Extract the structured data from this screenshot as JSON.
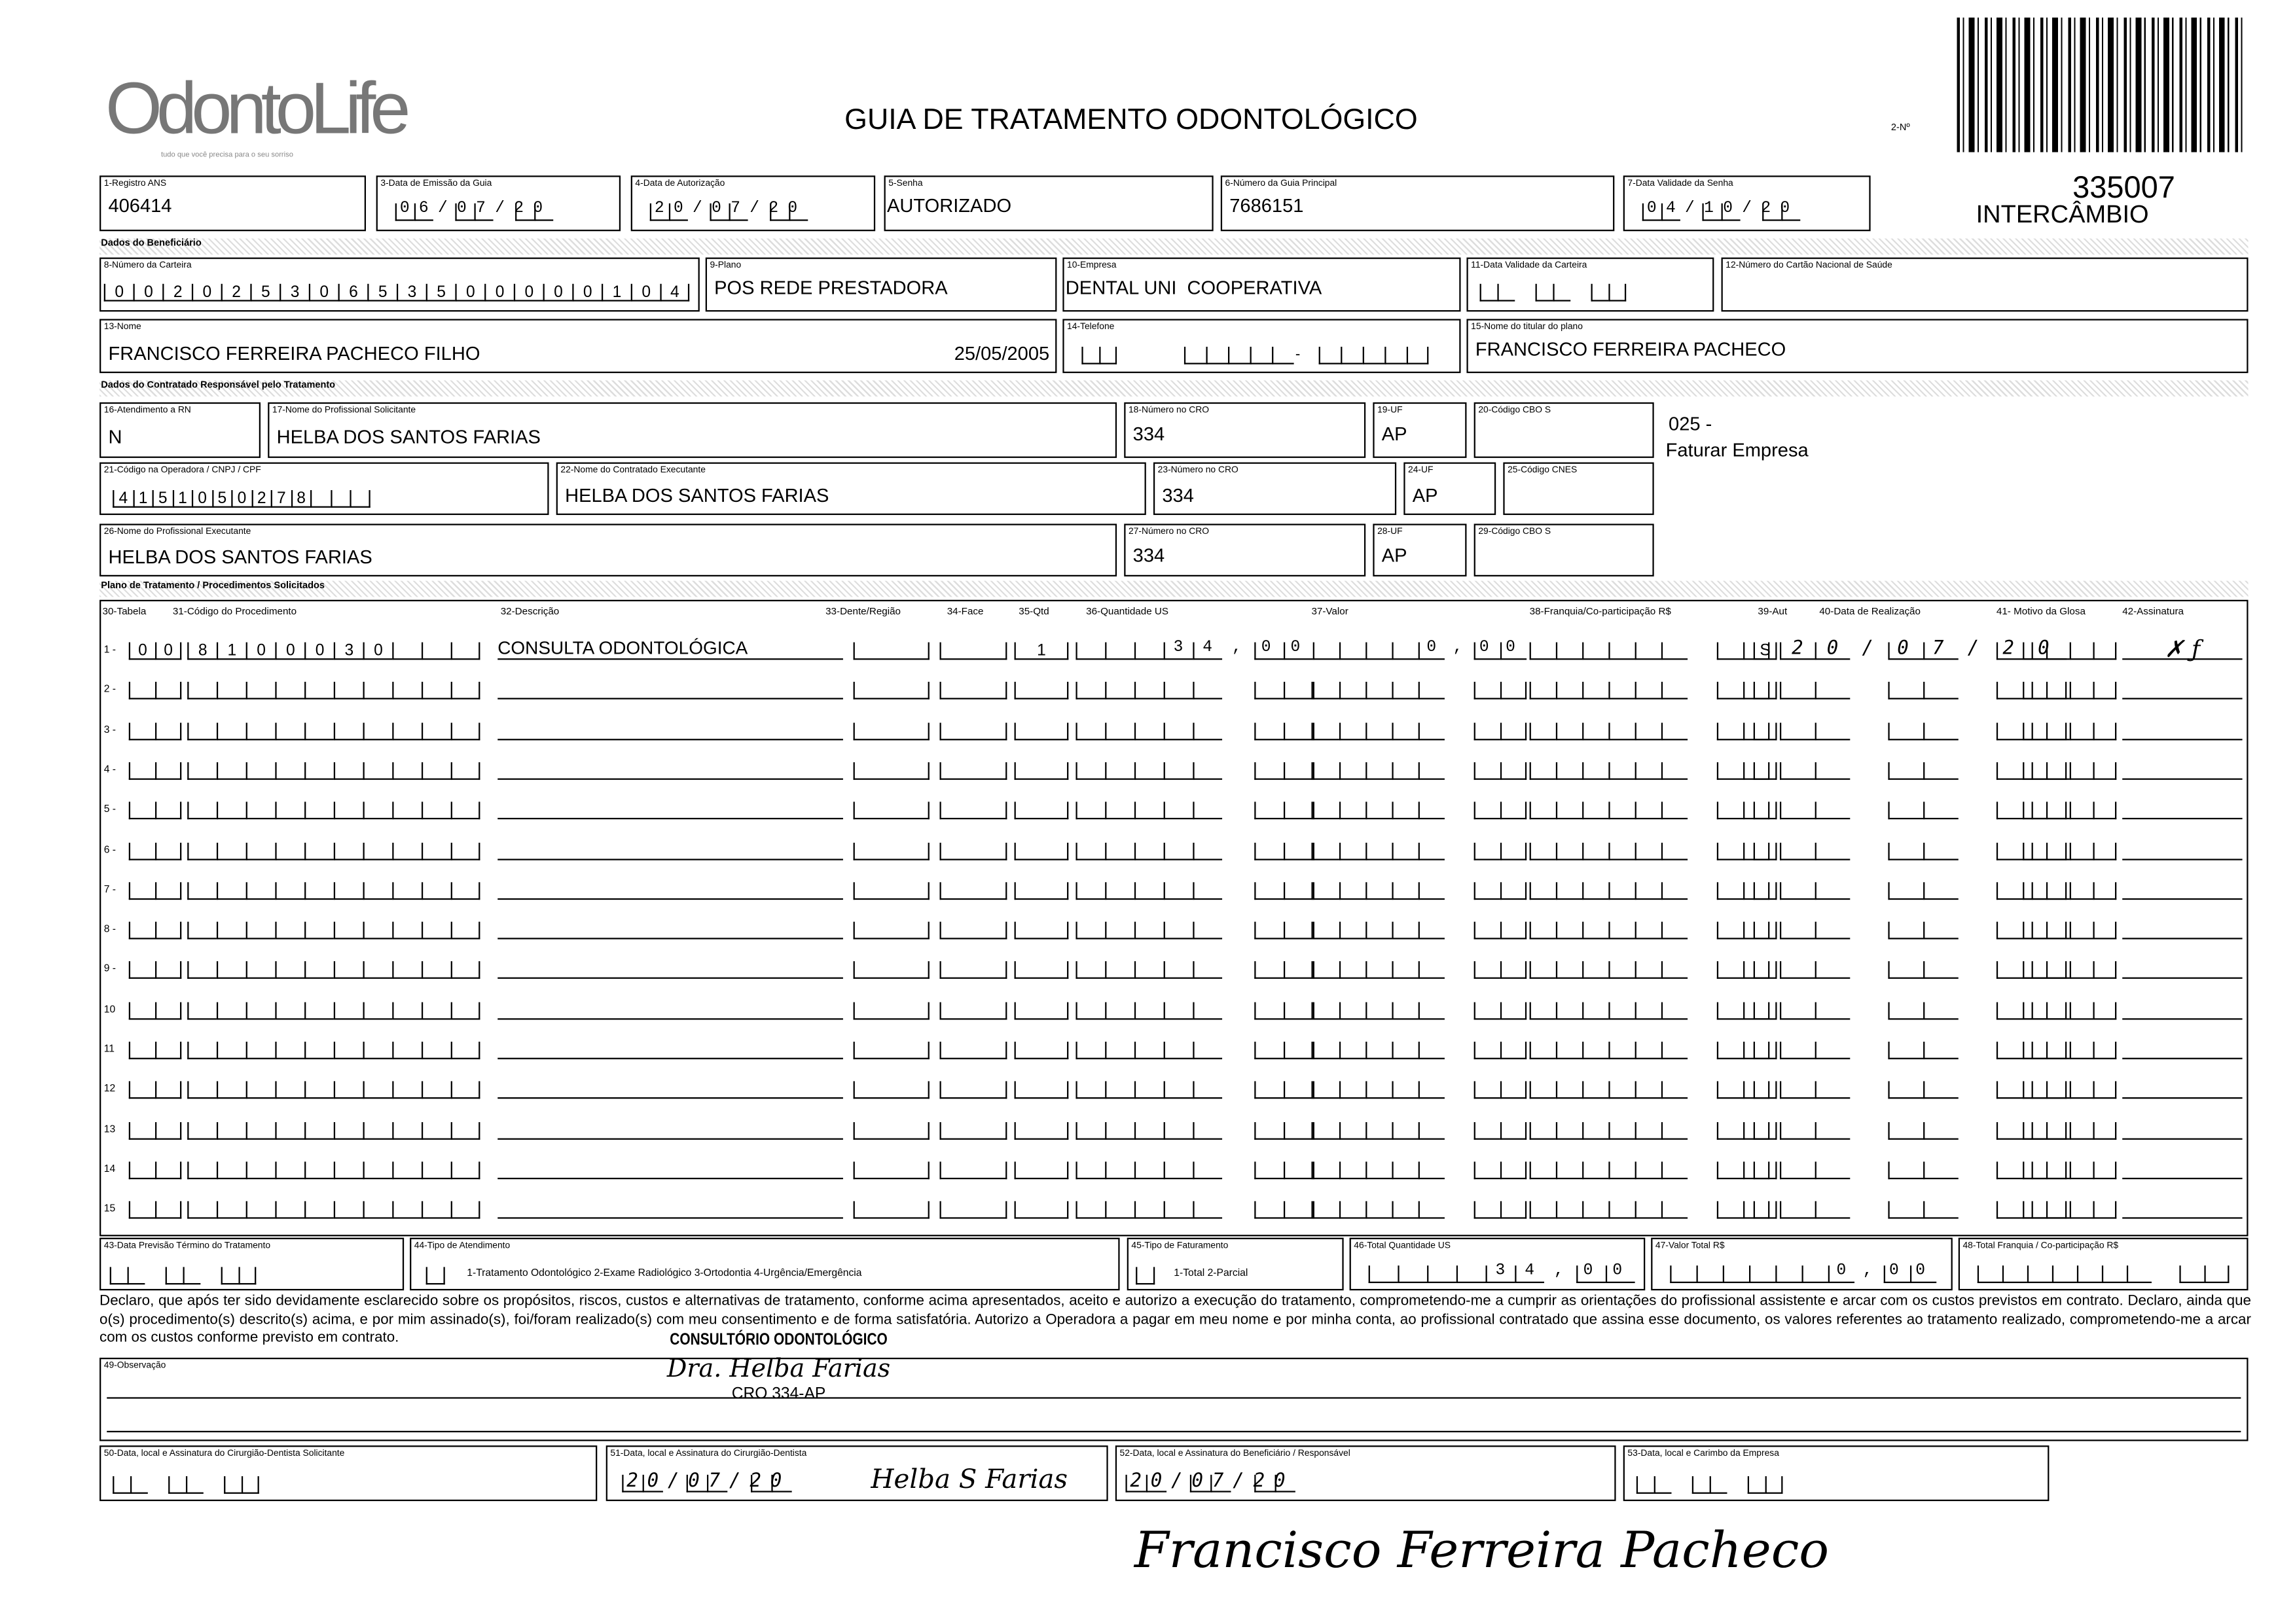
{
  "header": {
    "logo_text": "OdontoLife",
    "logo_tagline": "tudo que você precisa para o seu sorriso",
    "title": "GUIA DE TRATAMENTO ODONTOLÓGICO",
    "numero_label": "2-Nº",
    "guide_number": "335007",
    "intercambio": "INTERCÂMBIO"
  },
  "row1": {
    "registro_ans": {
      "label": "1-Registro ANS",
      "value": "406414"
    },
    "data_emissao": {
      "label": "3-Data de Emissão da Guia",
      "value": "06/07/20"
    },
    "data_autorizacao": {
      "label": "4-Data de Autorização",
      "value": "20/07/20"
    },
    "senha": {
      "label": "5-Senha",
      "value": "AUTORIZADO"
    },
    "guia_principal": {
      "label": "6-Número da Guia Principal",
      "value": "7686151"
    },
    "validade_senha": {
      "label": "7-Data Validade da Senha",
      "value": "04/10/20"
    }
  },
  "beneficiario": {
    "section": "Dados do Beneficiário",
    "carteira": {
      "label": "8-Número da Carteira",
      "value": "00202530653500000104"
    },
    "plano": {
      "label": "9-Plano",
      "value": "POS REDE PRESTADORA"
    },
    "empresa": {
      "label": "10-Empresa",
      "value": "DENTAL UNI  COOPERATIVA"
    },
    "validade_carteira": {
      "label": "11-Data Validade da Carteira",
      "value": ""
    },
    "cartao_nacional": {
      "label": "12-Número do Cartão Nacional de Saúde",
      "value": ""
    },
    "nome": {
      "label": "13-Nome",
      "value": "FRANCISCO FERREIRA PACHECO FILHO",
      "birth_date": "25/05/2005"
    },
    "telefone": {
      "label": "14-Telefone",
      "value": ""
    },
    "titular": {
      "label": "15-Nome do titular do plano",
      "value": "FRANCISCO FERREIRA PACHECO"
    }
  },
  "contratado": {
    "section": "Dados do Contratado Responsável pelo Tratamento",
    "rn": {
      "label": "16-Atendimento a RN",
      "value": "N"
    },
    "prof_solicitante": {
      "label": "17-Nome do Profissional Solicitante",
      "value": "HELBA DOS SANTOS FARIAS"
    },
    "cro18": {
      "label": "18-Número no CRO",
      "value": "334"
    },
    "uf19": {
      "label": "19-UF",
      "value": "AP"
    },
    "cbo20": {
      "label": "20-Código CBO S",
      "value": ""
    },
    "note_code": "025 -",
    "note_text": "Faturar Empresa",
    "codigo_operadora": {
      "label": "21-Código na Operadora / CNPJ / CPF",
      "value": "4151050278"
    },
    "contratado_exec": {
      "label": "22-Nome do Contratado Executante",
      "value": "HELBA DOS SANTOS FARIAS"
    },
    "cro23": {
      "label": "23-Número no CRO",
      "value": "334"
    },
    "uf24": {
      "label": "24-UF",
      "value": "AP"
    },
    "cnes": {
      "label": "25-Código CNES",
      "value": ""
    },
    "prof_exec": {
      "label": "26-Nome do Profissional Executante",
      "value": "HELBA DOS SANTOS FARIAS"
    },
    "cro27": {
      "label": "27-Número no CRO",
      "value": "334"
    },
    "uf28": {
      "label": "28-UF",
      "value": "AP"
    },
    "cbo29": {
      "label": "29-Código CBO S",
      "value": ""
    }
  },
  "plano": {
    "section": "Plano de Tratamento / Procedimentos Solicitados",
    "headers": [
      "30-Tabela",
      "31-Código do Procedimento",
      "32-Descrição",
      "33-Dente/Região",
      "34-Face",
      "35-Qtd",
      "36-Quantidade US",
      "37-Valor",
      "38-Franquia/Co-participação R$",
      "39-Aut",
      "40-Data de Realização",
      "41- Motivo da Glosa",
      "42-Assinatura"
    ],
    "rows": [
      {
        "n": "1 -",
        "tabela": "00",
        "codigo": "8100030",
        "descricao": "CONSULTA ODONTOLÓGICA",
        "dente": "",
        "face": "",
        "qtd": "1",
        "qtd_us": "34,00",
        "valor": "0,00",
        "franquia": "",
        "aut": "S",
        "data": "20/07/20",
        "motivo": "",
        "assinatura": "✗ ƒ"
      },
      {
        "n": "2 -",
        "tabela": "",
        "codigo": "",
        "descricao": "",
        "dente": "",
        "face": "",
        "qtd": "",
        "qtd_us": "",
        "valor": "",
        "franquia": "",
        "aut": "",
        "data": "",
        "motivo": "",
        "assinatura": ""
      },
      {
        "n": "3 -",
        "tabela": "",
        "codigo": "",
        "descricao": "",
        "dente": "",
        "face": "",
        "qtd": "",
        "qtd_us": "",
        "valor": "",
        "franquia": "",
        "aut": "",
        "data": "",
        "motivo": "",
        "assinatura": ""
      },
      {
        "n": "4 -",
        "tabela": "",
        "codigo": "",
        "descricao": "",
        "dente": "",
        "face": "",
        "qtd": "",
        "qtd_us": "",
        "valor": "",
        "franquia": "",
        "aut": "",
        "data": "",
        "motivo": "",
        "assinatura": ""
      },
      {
        "n": "5 -",
        "tabela": "",
        "codigo": "",
        "descricao": "",
        "dente": "",
        "face": "",
        "qtd": "",
        "qtd_us": "",
        "valor": "",
        "franquia": "",
        "aut": "",
        "data": "",
        "motivo": "",
        "assinatura": ""
      },
      {
        "n": "6 -",
        "tabela": "",
        "codigo": "",
        "descricao": "",
        "dente": "",
        "face": "",
        "qtd": "",
        "qtd_us": "",
        "valor": "",
        "franquia": "",
        "aut": "",
        "data": "",
        "motivo": "",
        "assinatura": ""
      },
      {
        "n": "7 -",
        "tabela": "",
        "codigo": "",
        "descricao": "",
        "dente": "",
        "face": "",
        "qtd": "",
        "qtd_us": "",
        "valor": "",
        "franquia": "",
        "aut": "",
        "data": "",
        "motivo": "",
        "assinatura": ""
      },
      {
        "n": "8 -",
        "tabela": "",
        "codigo": "",
        "descricao": "",
        "dente": "",
        "face": "",
        "qtd": "",
        "qtd_us": "",
        "valor": "",
        "franquia": "",
        "aut": "",
        "data": "",
        "motivo": "",
        "assinatura": ""
      },
      {
        "n": "9 -",
        "tabela": "",
        "codigo": "",
        "descricao": "",
        "dente": "",
        "face": "",
        "qtd": "",
        "qtd_us": "",
        "valor": "",
        "franquia": "",
        "aut": "",
        "data": "",
        "motivo": "",
        "assinatura": ""
      },
      {
        "n": "10",
        "tabela": "",
        "codigo": "",
        "descricao": "",
        "dente": "",
        "face": "",
        "qtd": "",
        "qtd_us": "",
        "valor": "",
        "franquia": "",
        "aut": "",
        "data": "",
        "motivo": "",
        "assinatura": ""
      },
      {
        "n": "11",
        "tabela": "",
        "codigo": "",
        "descricao": "",
        "dente": "",
        "face": "",
        "qtd": "",
        "qtd_us": "",
        "valor": "",
        "franquia": "",
        "aut": "",
        "data": "",
        "motivo": "",
        "assinatura": ""
      },
      {
        "n": "12",
        "tabela": "",
        "codigo": "",
        "descricao": "",
        "dente": "",
        "face": "",
        "qtd": "",
        "qtd_us": "",
        "valor": "",
        "franquia": "",
        "aut": "",
        "data": "",
        "motivo": "",
        "assinatura": ""
      },
      {
        "n": "13",
        "tabela": "",
        "codigo": "",
        "descricao": "",
        "dente": "",
        "face": "",
        "qtd": "",
        "qtd_us": "",
        "valor": "",
        "franquia": "",
        "aut": "",
        "data": "",
        "motivo": "",
        "assinatura": ""
      },
      {
        "n": "14",
        "tabela": "",
        "codigo": "",
        "descricao": "",
        "dente": "",
        "face": "",
        "qtd": "",
        "qtd_us": "",
        "valor": "",
        "franquia": "",
        "aut": "",
        "data": "",
        "motivo": "",
        "assinatura": ""
      },
      {
        "n": "15",
        "tabela": "",
        "codigo": "",
        "descricao": "",
        "dente": "",
        "face": "",
        "qtd": "",
        "qtd_us": "",
        "valor": "",
        "franquia": "",
        "aut": "",
        "data": "",
        "motivo": "",
        "assinatura": ""
      }
    ]
  },
  "totais": {
    "previsao": {
      "label": "43-Data Previsão Término do Tratamento",
      "value": ""
    },
    "tipo_atendimento": {
      "label": "44-Tipo de Atendimento",
      "value": "",
      "options": "1-Tratamento Odontológico  2-Exame Radiológico  3-Ortodontia  4-Urgência/Emergência"
    },
    "tipo_faturamento": {
      "label": "45-Tipo de Faturamento",
      "value": "",
      "options": "1-Total  2-Parcial"
    },
    "total_us": {
      "label": "46-Total Quantidade US",
      "value": "34,00"
    },
    "valor_total": {
      "label": "47-Valor Total R$",
      "value": "0,00"
    },
    "total_franquia": {
      "label": "48-Total Franquia / Co-participação R$",
      "value": ""
    }
  },
  "declaracao": "Declaro, que após ter sido devidamente esclarecido sobre os propósitos, riscos, custos e alternativas de tratamento, conforme acima apresentados, aceito e autorizo a execução do tratamento, comprometendo-me a cumprir as orientações do profissional assistente e arcar com os custos previstos em contrato. Declaro, ainda que o(s) procedimento(s) descrito(s) acima, e por mim assinado(s), foi/foram realizado(s) com meu consentimento e de forma satisfatória. Autorizo a Operadora a pagar em meu nome e por minha conta, ao profissional contratado que assina esse documento, os valores referentes ao tratamento realizado, comprometendo-me a arcar com os custos conforme previsto em contrato.",
  "observacao": {
    "label": "49-Observação",
    "stamp_line1": "CONSULTÓRIO ODONTOLÓGICO",
    "stamp_line2": "Dra. Helba Farias",
    "stamp_line3": "CRO 334-AP"
  },
  "assinaturas": {
    "solicitante": {
      "label": "50-Data, local e Assinatura do Cirurgião-Dentista Solicitante",
      "date": ""
    },
    "dentista": {
      "label": "51-Data, local e Assinatura do Cirurgião-Dentista",
      "date": "20/07/20",
      "signature": "Helba S Farias"
    },
    "beneficiario": {
      "label": "52-Data, local e Assinatura do Beneficiário / Responsável",
      "date": "20/07/20"
    },
    "empresa": {
      "label": "53-Data, local e Carimbo da Empresa",
      "date": ""
    },
    "beneficiario_signature": "Francisco Ferreira Pacheco"
  }
}
